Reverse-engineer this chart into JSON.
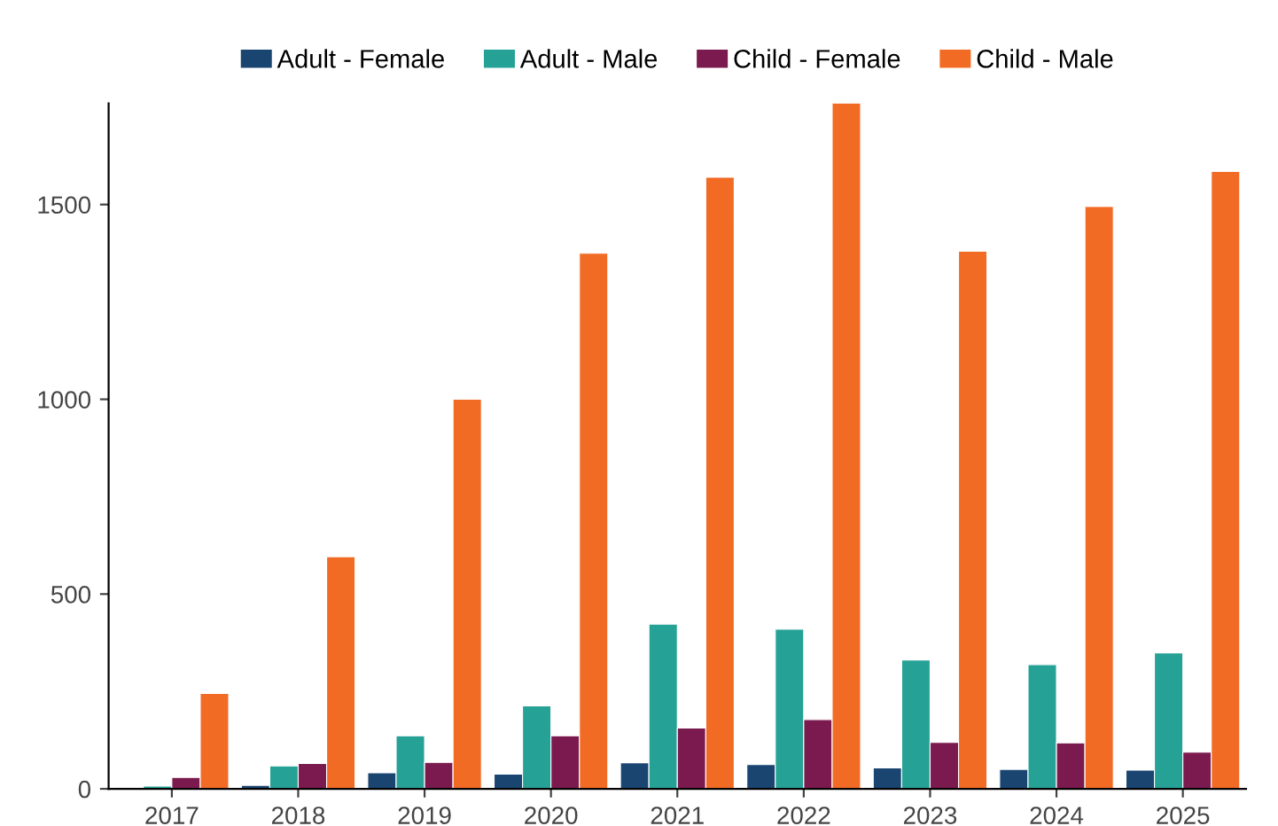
{
  "chart_data": {
    "type": "bar",
    "categories": [
      "2017",
      "2018",
      "2019",
      "2020",
      "2021",
      "2022",
      "2023",
      "2024",
      "2025"
    ],
    "series": [
      {
        "name": "Adult - Female",
        "color": "#1a4570",
        "values": [
          3,
          9,
          41,
          38,
          67,
          62,
          54,
          50,
          48
        ]
      },
      {
        "name": "Adult - Male",
        "color": "#26a196",
        "values": [
          7,
          59,
          136,
          213,
          423,
          410,
          331,
          319,
          349
        ]
      },
      {
        "name": "Child - Female",
        "color": "#7b1a4e",
        "values": [
          29,
          65,
          68,
          136,
          156,
          178,
          119,
          118,
          94
        ]
      },
      {
        "name": "Child - Male",
        "color": "#f26b25",
        "values": [
          245,
          596,
          1000,
          1375,
          1570,
          1760,
          1380,
          1495,
          1585
        ]
      }
    ],
    "ylim": [
      0,
      1760
    ],
    "yticks": [
      0,
      500,
      1000,
      1500
    ],
    "grid": false,
    "legend": "top"
  }
}
